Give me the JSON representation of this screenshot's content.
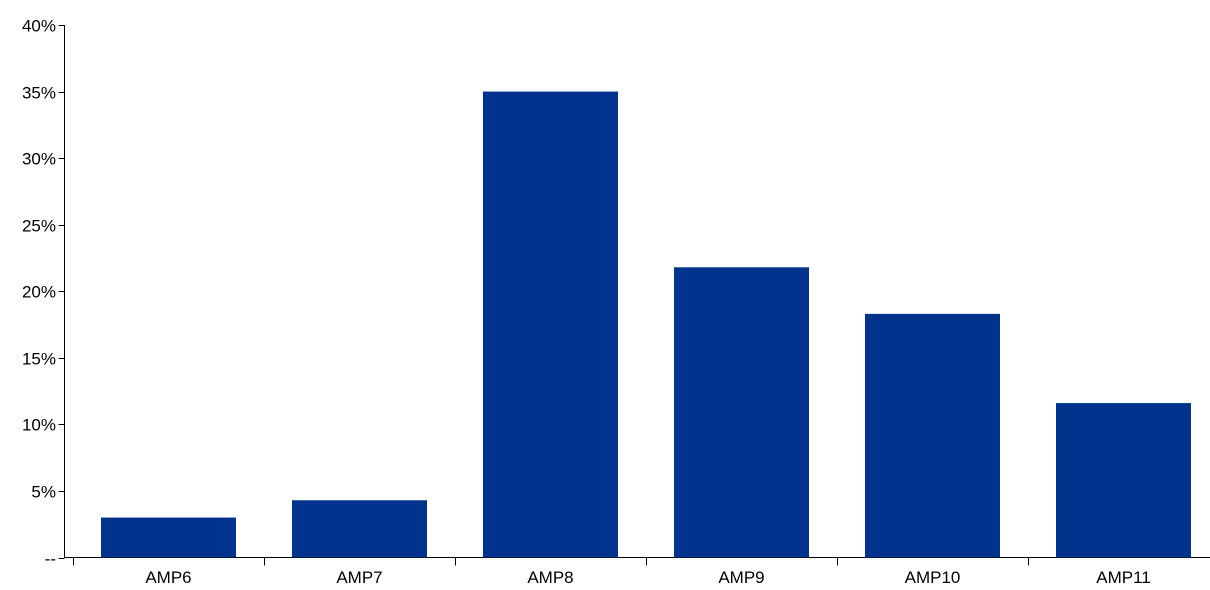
{
  "chart_data": {
    "type": "bar",
    "categories": [
      "AMP6",
      "AMP7",
      "AMP8",
      "AMP9",
      "AMP10",
      "AMP11"
    ],
    "values": [
      3.0,
      4.3,
      35.0,
      21.8,
      18.3,
      11.6
    ],
    "value_unit": "percent",
    "ylim": [
      0,
      40
    ],
    "y_ticks": [
      0,
      5,
      10,
      15,
      20,
      25,
      30,
      35,
      40
    ],
    "y_tick_labels": [
      "--",
      "5%",
      "10%",
      "15%",
      "20%",
      "25%",
      "30%",
      "35%",
      "40%"
    ],
    "title": "",
    "xlabel": "",
    "ylabel": "",
    "grid": false,
    "legend": "none",
    "bar_color": "#00338D"
  }
}
